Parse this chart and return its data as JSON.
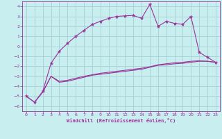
{
  "xlabel": "Windchill (Refroidissement éolien,°C)",
  "bg_color": "#c8eef0",
  "grid_color": "#aad4d8",
  "line_color": "#993399",
  "xlim": [
    -0.5,
    23.5
  ],
  "ylim": [
    -6.5,
    4.5
  ],
  "xticks": [
    0,
    1,
    2,
    3,
    4,
    5,
    6,
    7,
    8,
    9,
    10,
    11,
    12,
    13,
    14,
    15,
    16,
    17,
    18,
    19,
    20,
    21,
    22,
    23
  ],
  "yticks": [
    -6,
    -5,
    -4,
    -3,
    -2,
    -1,
    0,
    1,
    2,
    3,
    4
  ],
  "line1_x": [
    0,
    1,
    2,
    3,
    4,
    5,
    6,
    7,
    8,
    9,
    10,
    11,
    12,
    13,
    14,
    15,
    16,
    17,
    18,
    19,
    20,
    21,
    22,
    23
  ],
  "line1_y": [
    -5.0,
    -5.6,
    -4.5,
    -1.7,
    -0.5,
    0.3,
    1.0,
    1.6,
    2.2,
    2.5,
    2.8,
    3.0,
    3.05,
    3.1,
    2.8,
    4.2,
    2.0,
    2.5,
    2.3,
    2.2,
    3.0,
    -0.6,
    -1.1,
    -1.6
  ],
  "line2_x": [
    0,
    1,
    2,
    3,
    4,
    5,
    6,
    7,
    8,
    9,
    10,
    11,
    12,
    13,
    14,
    15,
    16,
    17,
    18,
    19,
    20,
    21,
    22,
    23
  ],
  "line2_y": [
    -5.0,
    -5.6,
    -4.6,
    -3.0,
    -3.6,
    -3.5,
    -3.3,
    -3.1,
    -2.9,
    -2.8,
    -2.7,
    -2.6,
    -2.5,
    -2.4,
    -2.3,
    -2.1,
    -1.9,
    -1.85,
    -1.75,
    -1.7,
    -1.6,
    -1.5,
    -1.5,
    -1.6
  ],
  "line3_x": [
    2,
    3,
    4,
    5,
    6,
    7,
    8,
    9,
    10,
    11,
    12,
    13,
    14,
    15,
    16,
    17,
    18,
    19,
    20,
    21,
    22,
    23
  ],
  "line3_y": [
    -4.6,
    -3.0,
    -3.5,
    -3.4,
    -3.2,
    -3.0,
    -2.85,
    -2.7,
    -2.6,
    -2.5,
    -2.4,
    -2.3,
    -2.2,
    -2.05,
    -1.85,
    -1.75,
    -1.65,
    -1.6,
    -1.5,
    -1.45,
    -1.5,
    -1.6
  ]
}
